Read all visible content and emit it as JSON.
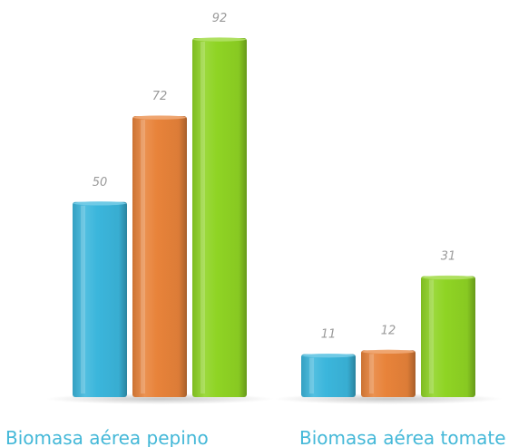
{
  "chart_data": {
    "type": "bar",
    "categories": [
      "Biomasa aérea pepino",
      "Biomasa aérea tomate"
    ],
    "series": [
      {
        "values": [
          50,
          11
        ],
        "color": "#3bb6dc"
      },
      {
        "values": [
          72,
          12
        ],
        "color": "#e8833a"
      },
      {
        "values": [
          92,
          31
        ],
        "color": "#8fd424"
      }
    ],
    "value_labels": true,
    "grid": false,
    "legend": "none",
    "ylim": [
      0,
      92
    ],
    "style": "3d-cylinder"
  }
}
